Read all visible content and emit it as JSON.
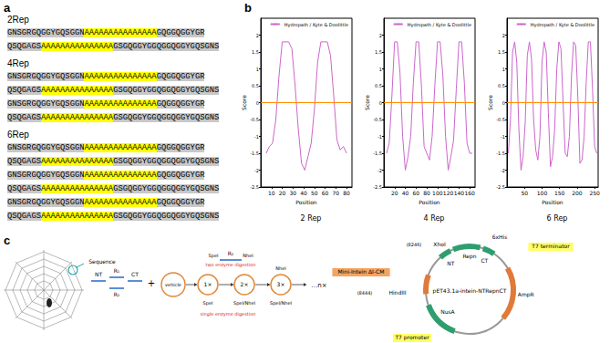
{
  "panel_a": {
    "label": "a",
    "groups": [
      {
        "title": "2Rep",
        "lines": [
          [
            "GNSGRGQGGYGQSGGN",
            "AAAAAAAAAAAAAAA",
            "GQGGQGGYGR"
          ],
          [
            "QSQGAGS",
            "AAAAAAAAAAAAAAA",
            "GSGQGGYGGQGGQGGYGQSGNS"
          ]
        ]
      },
      {
        "title": "4Rep",
        "lines": [
          [
            "GNSGRGQGGYGQSGGN",
            "AAAAAAAAAAAAAAA",
            "GQGGQGGYGR"
          ],
          [
            "QSQGAGS",
            "AAAAAAAAAAAAAAA",
            "GSGQGGYGGQGGQGGYGQSGNS"
          ],
          [
            "GNSGRGQGGYGQSGGN",
            "AAAAAAAAAAAAAAA",
            "GQGGQGGYGR"
          ],
          [
            "QSQGAGS",
            "AAAAAAAAAAAAAAA",
            "GSGQGGYGGQGGQGGYGQSGNS"
          ]
        ]
      },
      {
        "title": "6Rep",
        "lines": [
          [
            "GNSGRGQGGYGQSGGN",
            "AAAAAAAAAAAAAAA",
            "GQGGQGGYGR"
          ],
          [
            "QSQGAGS",
            "AAAAAAAAAAAAAAA",
            "GSGQGGYGGQGGQGGYGQSGNS"
          ],
          [
            "GNSGRGQGGYGQSGGN",
            "AAAAAAAAAAAAAAA",
            "GQGGQGGYGR"
          ],
          [
            "QSQGAGS",
            "AAAAAAAAAAAAAAA",
            "GSGQGGYGGQGGQGGYGQSGNS"
          ],
          [
            "GNSGRGQGGYGQSGGN",
            "AAAAAAAAAAAAAAA",
            "GQGGQGGYGR"
          ],
          [
            "QSQGAGS",
            "AAAAAAAAAAAAAAA",
            "GSGQGGYGGQGGQGGYGQSGNS"
          ]
        ]
      }
    ]
  },
  "panel_b": {
    "label": "b"
  },
  "chart_data": [
    {
      "type": "line",
      "title": "2 Rep",
      "x_label": "Position",
      "y_label": "Score",
      "x": [
        5,
        8,
        11,
        14,
        17,
        20,
        23,
        26,
        29,
        32,
        35,
        38,
        41,
        44,
        47,
        50,
        53,
        56,
        59,
        62,
        65,
        68,
        71,
        74,
        77,
        80
      ],
      "series": [
        {
          "name": "Hydropath / Kyte & Doolittle",
          "color": "#cc66cc",
          "values": [
            -1.5,
            -1.3,
            -1.2,
            -0.5,
            0.8,
            1.8,
            1.8,
            1.8,
            1.6,
            0.5,
            -0.8,
            -1.8,
            -2.0,
            -1.6,
            -1.2,
            -0.2,
            1.2,
            1.8,
            1.8,
            1.8,
            1.4,
            0.2,
            -1.1,
            -1.4,
            -1.3,
            -1.5
          ]
        }
      ],
      "threshold": 0,
      "xlim": [
        0,
        85
      ],
      "xticks": [
        10,
        20,
        30,
        40,
        50,
        60,
        70,
        80
      ],
      "ylim": [
        -2.5,
        2.5
      ],
      "yticks": [
        -2.5,
        -2,
        -1.5,
        -1,
        -0.5,
        0,
        0.5,
        1,
        1.5,
        2
      ],
      "grid": false,
      "legend": "upper right"
    },
    {
      "type": "line",
      "title": "4 Rep",
      "x_label": "Position",
      "y_label": "Score",
      "x": [
        5,
        10,
        15,
        20,
        25,
        30,
        35,
        40,
        45,
        50,
        55,
        60,
        65,
        70,
        75,
        80,
        85,
        90,
        95,
        100,
        105,
        110,
        115,
        120,
        125,
        130,
        135,
        140,
        145,
        150,
        155,
        160,
        165
      ],
      "series": [
        {
          "name": "Hydropath / Kyte & Doolittle",
          "color": "#cc66cc",
          "values": [
            -1.5,
            -1.2,
            0.2,
            1.8,
            1.8,
            0.9,
            -1.0,
            -2.0,
            -1.6,
            -1.0,
            0.6,
            1.8,
            1.8,
            0.5,
            -1.3,
            -1.5,
            -1.7,
            -1.0,
            0.5,
            1.8,
            1.8,
            0.8,
            -1.0,
            -2.0,
            -1.6,
            -1.1,
            0.4,
            1.8,
            1.8,
            0.6,
            -1.2,
            -1.5,
            -1.5
          ]
        }
      ],
      "threshold": 0,
      "xlim": [
        0,
        170
      ],
      "xticks": [
        20,
        40,
        60,
        80,
        100,
        120,
        140,
        160
      ],
      "ylim": [
        -2.5,
        2.5
      ],
      "yticks": [
        -2.5,
        -2,
        -1.5,
        -1,
        -0.5,
        0,
        0.5,
        1,
        1.5,
        2
      ],
      "grid": false,
      "legend": "upper right"
    },
    {
      "type": "line",
      "title": "6 Rep",
      "x_label": "Position",
      "y_label": "Score",
      "x": [
        4,
        10,
        16,
        22,
        28,
        34,
        40,
        46,
        52,
        58,
        64,
        70,
        76,
        82,
        88,
        94,
        100,
        106,
        112,
        118,
        124,
        130,
        136,
        142,
        148,
        154,
        160,
        166,
        172,
        178,
        184,
        190,
        196,
        202,
        208,
        214,
        220,
        226,
        232,
        238,
        244,
        250,
        256
      ],
      "series": [
        {
          "name": "Hydropath / Kyte & Doolittle",
          "color": "#cc66cc",
          "values": [
            -1.5,
            -0.5,
            1.5,
            1.8,
            1.2,
            -0.8,
            -2.0,
            -1.6,
            -0.6,
            1.4,
            1.8,
            1.3,
            -0.5,
            -1.4,
            -1.7,
            -1.0,
            1.2,
            1.8,
            1.5,
            -0.3,
            -1.9,
            -1.6,
            -0.8,
            1.0,
            1.8,
            1.6,
            0.0,
            -1.5,
            -1.6,
            -1.0,
            0.8,
            1.8,
            1.7,
            0.2,
            -1.8,
            -1.7,
            -1.0,
            0.6,
            1.8,
            1.8,
            0.4,
            -1.3,
            -1.5
          ]
        }
      ],
      "threshold": 0,
      "xlim": [
        0,
        260
      ],
      "xticks": [
        50,
        100,
        150,
        200,
        250
      ],
      "ylim": [
        -2.5,
        2.5
      ],
      "yticks": [
        -2.5,
        -2,
        -1.5,
        -1,
        -0.5,
        0,
        0.5,
        1,
        1.5,
        2
      ],
      "grid": false,
      "legend": "upper right"
    }
  ],
  "panel_c": {
    "label": "c",
    "workflow": {
      "source": "Sequence",
      "segments": [
        "NT",
        "R₁",
        "CT",
        "R₂"
      ],
      "plus": "+",
      "vector": "vehicle",
      "insert": "R₂",
      "steps": [
        "1×",
        "2×",
        "3×",
        "…n×"
      ],
      "sites": [
        "SpeI",
        "NheI",
        "SpeI",
        "SpeI/NheI",
        "NheI",
        "SpeI/NheI"
      ],
      "notes": [
        "two enzyme digestion",
        "single enzyme digestion"
      ]
    },
    "plasmid": {
      "name": "pET43.1a-intein-NTRepnCT",
      "features": [
        "NT",
        "Repn",
        "CT",
        "AmpR",
        "NusA"
      ],
      "sites": [
        "6xHis",
        "XhoI",
        "(8246)",
        "T7 terminator",
        "Mini-Intein ΔI-CM",
        "(8444)",
        "HindIII",
        "T7 promoter"
      ]
    }
  }
}
